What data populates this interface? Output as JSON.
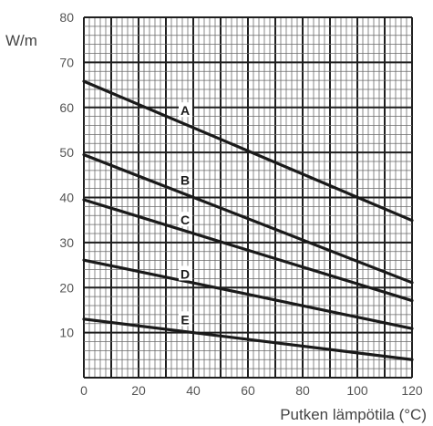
{
  "chart_data": {
    "type": "line",
    "ylabel": "W/m",
    "xlabel": "Putken lämpötila (°C)",
    "xlim": [
      0,
      120
    ],
    "ylim": [
      0,
      80
    ],
    "x_ticks": [
      0,
      20,
      40,
      60,
      80,
      100,
      120
    ],
    "x_tick_labels": [
      "0",
      "20",
      "40",
      "60",
      "80",
      "100",
      "120"
    ],
    "y_ticks": [
      10,
      20,
      30,
      40,
      50,
      60,
      70,
      80
    ],
    "y_tick_labels": [
      "10",
      "20",
      "30",
      "40",
      "50",
      "60",
      "70",
      "80"
    ],
    "grid": true,
    "colors": {
      "line": "#1a1a1a",
      "grid_minor": "#6a6a6a",
      "grid_major": "#1f1f1f"
    },
    "series": [
      {
        "name": "A",
        "x": [
          0,
          120
        ],
        "y": [
          65.8,
          34.9
        ],
        "label_at": [
          37,
          59.3
        ]
      },
      {
        "name": "B",
        "x": [
          0,
          120
        ],
        "y": [
          49.5,
          21.1
        ],
        "label_at": [
          37,
          43.8
        ]
      },
      {
        "name": "C",
        "x": [
          0,
          120
        ],
        "y": [
          39.5,
          17.1
        ],
        "label_at": [
          37,
          35.0
        ]
      },
      {
        "name": "D",
        "x": [
          0,
          120
        ],
        "y": [
          26.1,
          10.9
        ],
        "label_at": [
          37,
          23.0
        ]
      },
      {
        "name": "E",
        "x": [
          0,
          120
        ],
        "y": [
          13.0,
          4.0
        ],
        "label_at": [
          37,
          12.9
        ]
      }
    ]
  }
}
